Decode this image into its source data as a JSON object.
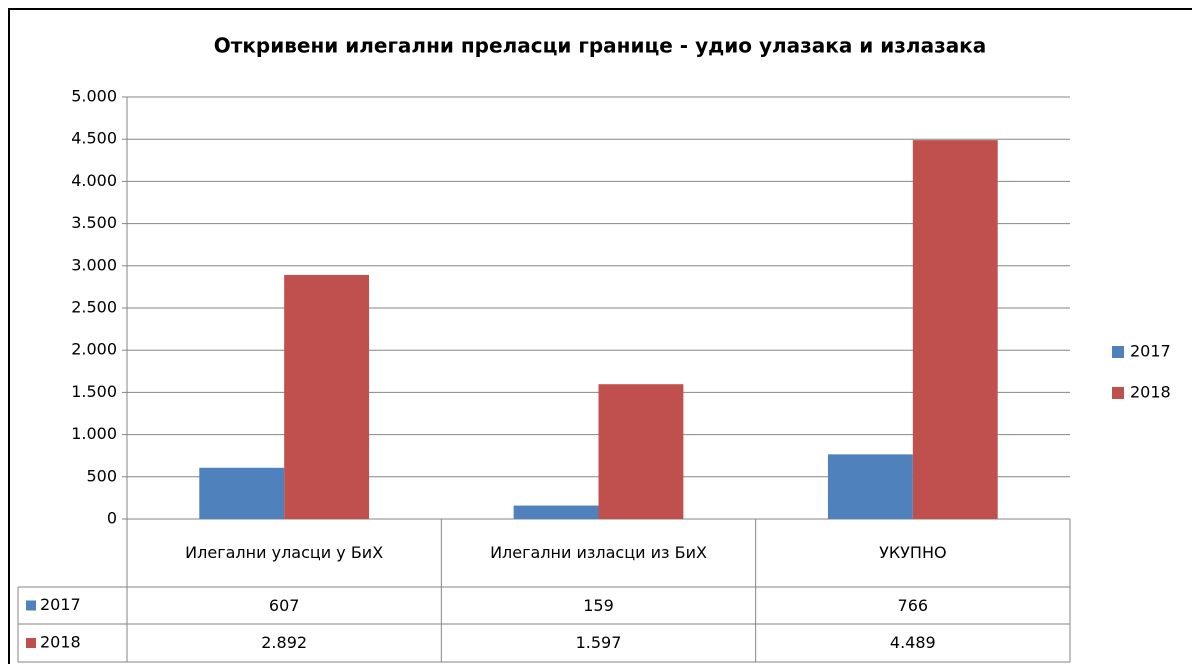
{
  "chart_data": {
    "type": "bar",
    "title": "Откривени илегални преласци границе - удио улазака и излазака",
    "categories": [
      "Илегални уласци у БиХ",
      "Илегални изласци из БиХ",
      "УКУПНО"
    ],
    "series": [
      {
        "name": "2017",
        "color": "#4f81bd",
        "values": [
          607,
          159,
          766
        ],
        "value_labels": [
          "607",
          "159",
          "766"
        ]
      },
      {
        "name": "2018",
        "color": "#c0504d",
        "values": [
          2892,
          1597,
          4489
        ],
        "value_labels": [
          "2.892",
          "1.597",
          "4.489"
        ]
      }
    ],
    "ylim": [
      0,
      5000
    ],
    "yticks": [
      0,
      500,
      {
        "value": 1000,
        "label": "1.000"
      },
      {
        "value": 1500,
        "label": "1.500"
      },
      {
        "value": 2000,
        "label": "2.000"
      },
      {
        "value": 2500,
        "label": "2.500"
      },
      {
        "value": 3000,
        "label": "3.000"
      },
      {
        "value": 3500,
        "label": "3.500"
      },
      {
        "value": 4000,
        "label": "4.000"
      },
      {
        "value": 4500,
        "label": "4.500"
      },
      {
        "value": 5000,
        "label": "5.000"
      }
    ],
    "grid": true,
    "legend": "right",
    "data_table": true
  }
}
